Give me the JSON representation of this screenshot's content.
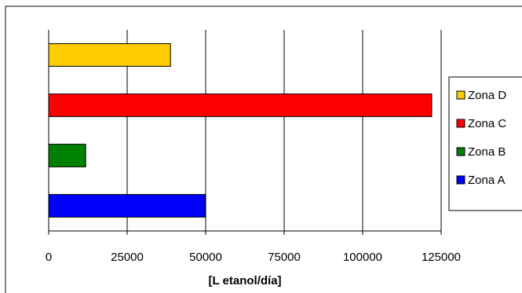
{
  "chart_data": {
    "type": "bar",
    "orientation": "horizontal",
    "categories": [
      "Zona A",
      "Zona B",
      "Zona C",
      "Zona D"
    ],
    "values": [
      49800,
      11800,
      122000,
      38800
    ],
    "colors": {
      "Zona A": "#0000ff",
      "Zona B": "#008000",
      "Zona C": "#ff0000",
      "Zona D": "#ffcc00"
    },
    "title": "",
    "xlabel": "[L etanol/día]",
    "ylabel": "",
    "xlim": [
      0,
      125000
    ],
    "xticks": [
      "0",
      "25000",
      "50000",
      "75000",
      "100000",
      "125000"
    ],
    "grid": "vertical",
    "legend": {
      "position": "right",
      "entries": [
        "Zona D",
        "Zona C",
        "Zona B",
        "Zona A"
      ]
    }
  }
}
